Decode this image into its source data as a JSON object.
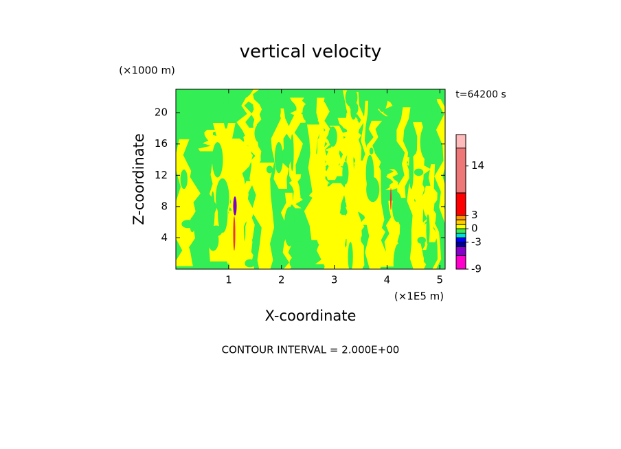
{
  "chart_data": {
    "type": "contour",
    "title": "vertical velocity",
    "x_label": "X-coordinate",
    "y_label": "Z-coordinate",
    "x_unit": "(×1E5 m)",
    "y_unit": "(×1000 m)",
    "time_label": "t=64200 s",
    "footer": "CONTOUR INTERVAL = 2.000E+00",
    "xlim": [
      0,
      5.1
    ],
    "xticks": [
      1,
      2,
      3,
      4,
      5
    ],
    "ylim": [
      0,
      23
    ],
    "yticks": [
      4,
      8,
      12,
      16,
      20
    ],
    "colorbar": {
      "lim": [
        -9,
        21
      ],
      "levels": [
        -9,
        -6,
        -4,
        -3,
        -2,
        -1,
        0,
        1,
        2,
        3,
        8,
        18,
        21
      ],
      "colors": [
        "#ff00cc",
        "#8800cc",
        "#000099",
        "#0000ff",
        "#00dddd",
        "#33ee55",
        "#ffff00",
        "#ffcc00",
        "#ff9900",
        "#ff0000",
        "#ee7777",
        "#ffbbbb"
      ],
      "ticks": [
        -9,
        -3,
        0,
        3,
        14
      ]
    }
  }
}
